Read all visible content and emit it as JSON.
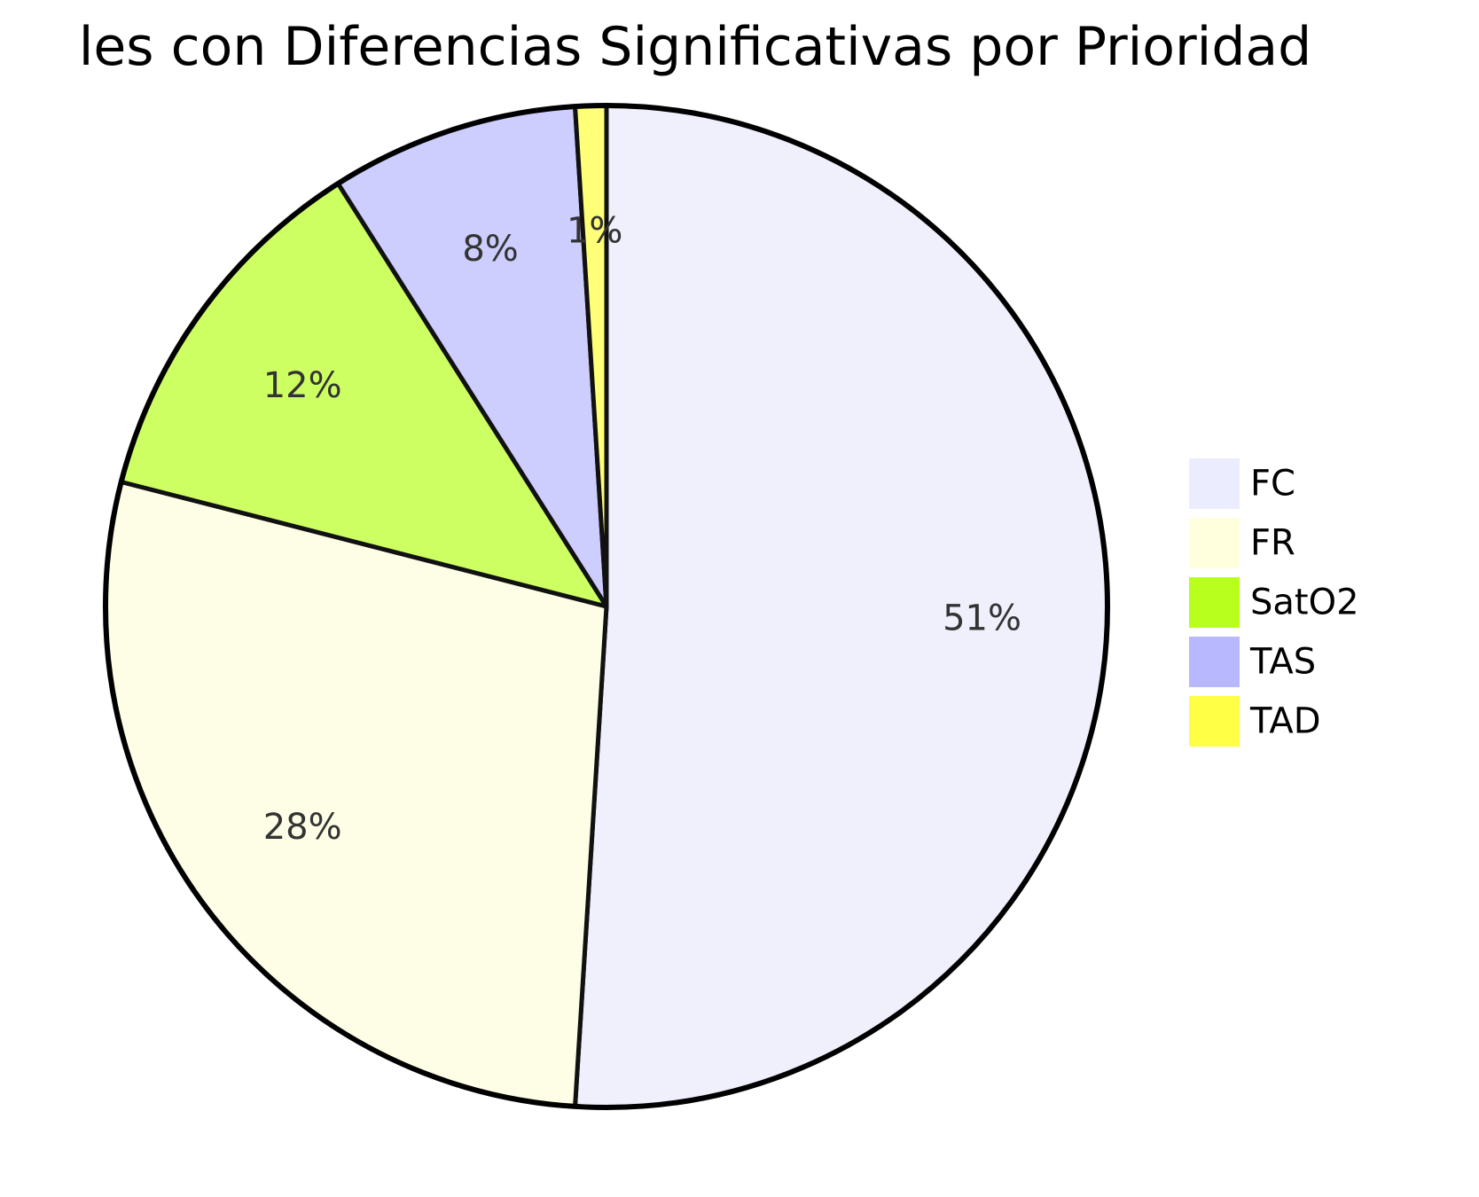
{
  "chart_data": {
    "type": "pie",
    "title": "les con Diferencias Significativas por Prioridad",
    "legend_position": "right",
    "series": [
      {
        "name": "FC",
        "value": 51,
        "label": "51%",
        "color": "#ececff"
      },
      {
        "name": "FR",
        "value": 28,
        "label": "28%",
        "color": "#ffffde"
      },
      {
        "name": "SatO2",
        "value": 12,
        "label": "12%",
        "color": "#b9ff1e"
      },
      {
        "name": "TAS",
        "value": 8,
        "label": "8%",
        "color": "#b8b8ff"
      },
      {
        "name": "TAD",
        "value": 1,
        "label": "1%",
        "color": "#ffff46"
      }
    ],
    "slice_colors": [
      "#f0f0fd",
      "#fefee6",
      "#cdff63",
      "#cdcdfe",
      "#ffff78"
    ]
  }
}
